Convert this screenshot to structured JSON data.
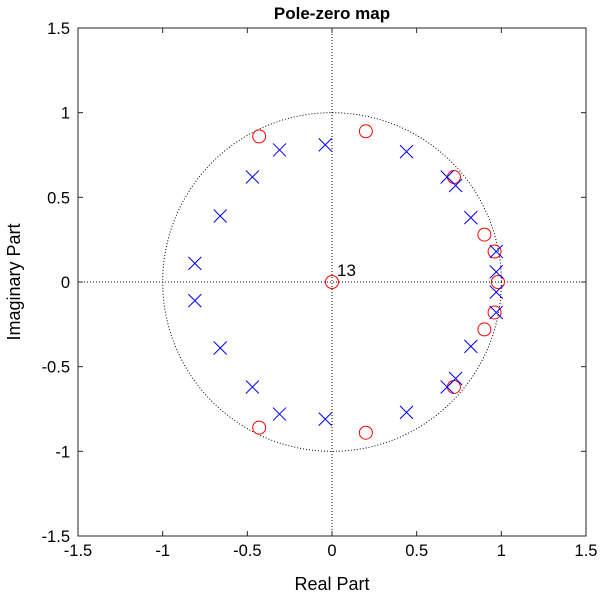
{
  "chart_data": {
    "type": "scatter",
    "title": "Pole-zero map",
    "xlabel": "Real Part",
    "ylabel": "Imaginary Part",
    "xlim": [
      -1.5,
      1.5
    ],
    "ylim": [
      -1.5,
      1.5
    ],
    "xticks": [
      "-1.5",
      "-1",
      "-0.5",
      "0",
      "0.5",
      "1",
      "1.5"
    ],
    "yticks": [
      "1.5",
      "1",
      "0.5",
      "0",
      "-0.5",
      "-1",
      "-1.5"
    ],
    "xtick_values": [
      -1.5,
      -1,
      -0.5,
      0,
      0.5,
      1,
      1.5
    ],
    "ytick_values": [
      1.5,
      1,
      0.5,
      0,
      -0.5,
      -1,
      -1.5
    ],
    "unit_circle": true,
    "reference_axes": true,
    "zeros_color": "#ff0000",
    "poles_color": "#0000ff",
    "annotation": {
      "text": "13",
      "x": 0.0,
      "y": 0.0
    },
    "series": [
      {
        "marker": "o",
        "points": [
          [
            0.0,
            0.0
          ],
          [
            -0.43,
            0.86
          ],
          [
            0.2,
            0.89
          ],
          [
            0.72,
            0.62
          ],
          [
            0.9,
            0.28
          ],
          [
            0.96,
            0.18
          ],
          [
            0.98,
            0.0
          ],
          [
            0.96,
            -0.18
          ],
          [
            0.9,
            -0.28
          ],
          [
            0.72,
            -0.62
          ],
          [
            0.2,
            -0.89
          ],
          [
            -0.43,
            -0.86
          ]
        ]
      },
      {
        "marker": "x",
        "points": [
          [
            -0.04,
            0.81
          ],
          [
            -0.31,
            0.78
          ],
          [
            -0.47,
            0.62
          ],
          [
            -0.66,
            0.39
          ],
          [
            -0.81,
            0.11
          ],
          [
            -0.81,
            -0.11
          ],
          [
            -0.66,
            -0.39
          ],
          [
            -0.47,
            -0.62
          ],
          [
            -0.31,
            -0.78
          ],
          [
            -0.04,
            -0.81
          ],
          [
            0.44,
            0.77
          ],
          [
            0.68,
            0.62
          ],
          [
            0.73,
            0.57
          ],
          [
            0.82,
            0.38
          ],
          [
            0.97,
            0.18
          ],
          [
            0.97,
            0.06
          ],
          [
            0.97,
            -0.06
          ],
          [
            0.97,
            -0.18
          ],
          [
            0.82,
            -0.38
          ],
          [
            0.73,
            -0.57
          ],
          [
            0.68,
            -0.62
          ],
          [
            0.44,
            -0.77
          ]
        ]
      }
    ]
  }
}
